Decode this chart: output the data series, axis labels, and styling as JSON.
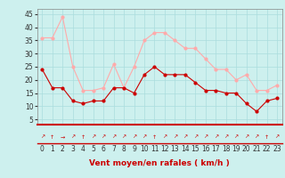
{
  "x": [
    0,
    1,
    2,
    3,
    4,
    5,
    6,
    7,
    8,
    9,
    10,
    11,
    12,
    13,
    14,
    15,
    16,
    17,
    18,
    19,
    20,
    21,
    22,
    23
  ],
  "mean_wind": [
    24,
    17,
    17,
    12,
    11,
    12,
    12,
    17,
    17,
    15,
    22,
    25,
    22,
    22,
    22,
    19,
    16,
    16,
    15,
    15,
    11,
    8,
    12,
    13
  ],
  "gust_wind": [
    36,
    36,
    44,
    25,
    16,
    16,
    17,
    26,
    17,
    25,
    35,
    38,
    38,
    35,
    32,
    32,
    28,
    24,
    24,
    20,
    22,
    16,
    16,
    18
  ],
  "mean_color": "#cc0000",
  "gust_color": "#ffaaaa",
  "bg_color": "#cdf0ee",
  "grid_color": "#aadddd",
  "xlabel": "Vent moyen/en rafales ( km/h )",
  "xlabel_color": "#cc0000",
  "ylabel_values": [
    5,
    10,
    15,
    20,
    25,
    30,
    35,
    40,
    45
  ],
  "ylim": [
    3,
    47
  ],
  "xlim": [
    -0.5,
    23.5
  ],
  "marker_size": 2,
  "linewidth": 0.8,
  "tick_fontsize": 5.5,
  "label_fontsize": 6.5
}
